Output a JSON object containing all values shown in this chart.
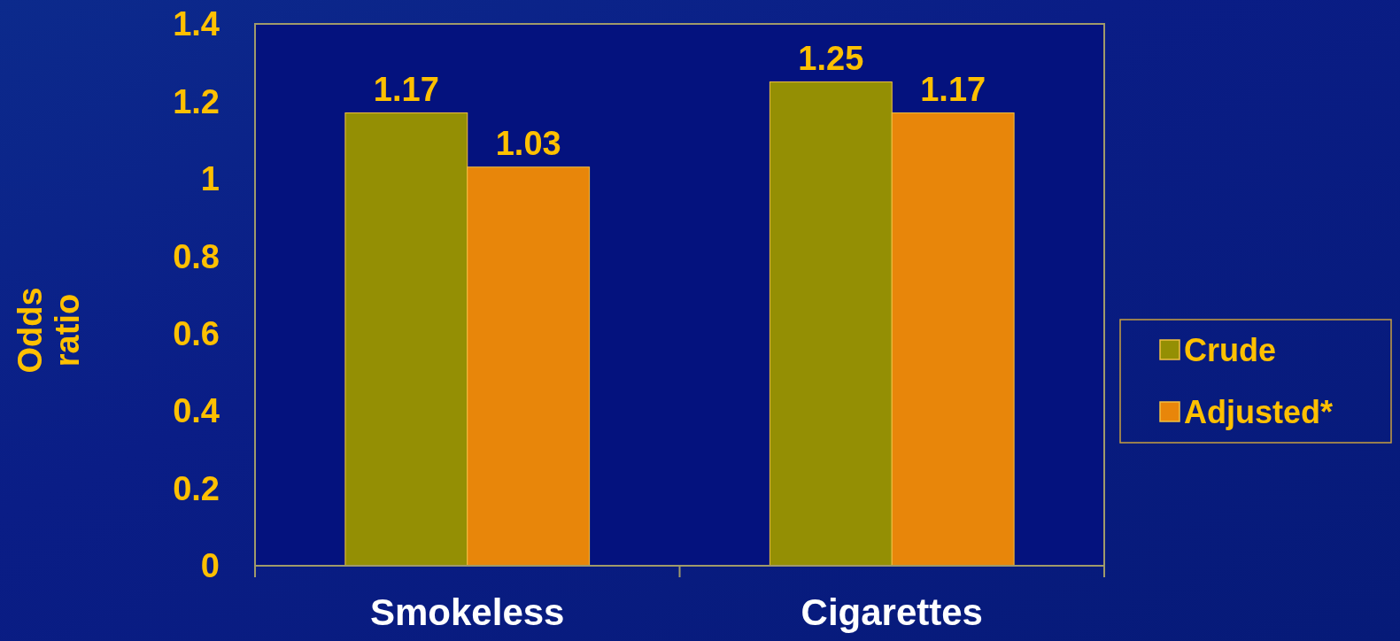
{
  "chart_data": {
    "type": "bar",
    "ylabel": "Odds ratio",
    "categories": [
      "Smokeless",
      "Cigarettes"
    ],
    "series": [
      {
        "name": "Crude",
        "color": "#948f04",
        "values": [
          1.17,
          1.25
        ]
      },
      {
        "name": "Adjusted*",
        "color": "#e8860a",
        "values": [
          1.03,
          1.17
        ]
      }
    ],
    "ylim": [
      0,
      1.4
    ],
    "yticks": [
      0,
      {
        "value": 0.2,
        "label": "0.2"
      },
      {
        "value": 0.4,
        "label": "0.4"
      },
      {
        "value": 0.6,
        "label": "0.6"
      },
      {
        "value": 0.8,
        "label": "0.8"
      },
      1,
      {
        "value": 1.2,
        "label": "1.2"
      },
      {
        "value": 1.4,
        "label": "1.4"
      }
    ],
    "data_labels": true,
    "legend": "right",
    "grid": false
  }
}
